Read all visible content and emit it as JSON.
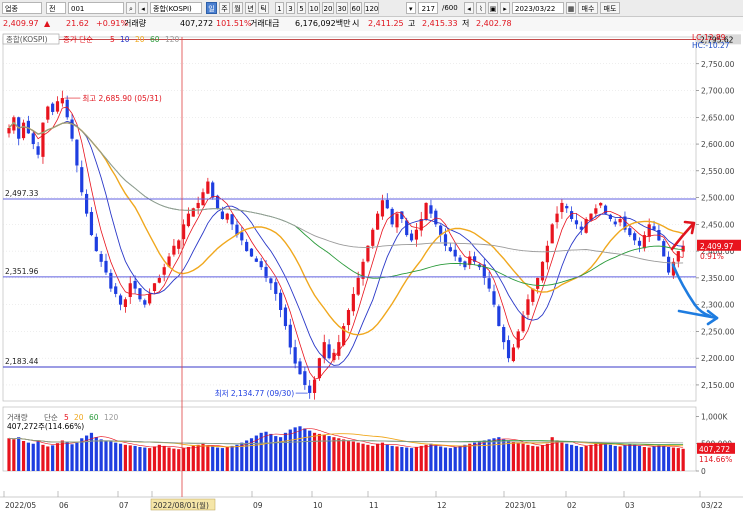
{
  "toolbar": {
    "market_select": "업종",
    "scope_select": "전",
    "code_input": "001",
    "index_name": "종합(KOSPI)",
    "period_buttons": [
      "일",
      "주",
      "월",
      "년",
      "틱"
    ],
    "minute_buttons": [
      "1",
      "3",
      "5",
      "10",
      "20",
      "30",
      "60",
      "120"
    ],
    "count_display": "217",
    "count_total": "/600",
    "date_input": "2023/03/22",
    "buy_button": "매수",
    "sell_button": "매도"
  },
  "quote": {
    "price": "2,409.97",
    "arrow": "▲",
    "change": "21.62",
    "change_pct": "+0.91%",
    "volume_label": "거래량",
    "volume": "407,272",
    "volume_ratio": "101.51%",
    "amount_label": "거래대금",
    "amount": "6,176,092백만",
    "open_label": "시",
    "open": "2,411.25",
    "high_label": "고",
    "high": "2,415.33",
    "low_label": "저",
    "low": "2,402.78"
  },
  "price_panel": {
    "legend_name": "종합(KOSPI)",
    "ma_label": "종가 단순",
    "ma_periods": [
      "5",
      "10",
      "20",
      "60",
      "120"
    ],
    "ma_colors": [
      "#e8141e",
      "#2a38c8",
      "#f0a81e",
      "#2a9a3a",
      "#9a9a9a"
    ],
    "corner_lc": "LC:12.89",
    "corner_hc": "HC:-10.27",
    "max_label": "최고 2,685.90 (05/31)",
    "min_label": "최저 2,134.77 (09/30)",
    "hline_labels": [
      "2,497.33",
      "2,351.96",
      "2,183.44"
    ],
    "right_top_price": "2,795.62",
    "current_price_tag": "2,409.97",
    "current_pct_tag": "0.91%",
    "y_ticks": [
      "2,750.00",
      "2,700.00",
      "2,650.00",
      "2,600.00",
      "2,550.00",
      "2,500.00",
      "2,450.00",
      "2,400.00",
      "2,350.00",
      "2,300.00",
      "2,250.00",
      "2,200.00",
      "2,150.00"
    ]
  },
  "volume_panel": {
    "legend_name": "거래량",
    "ma_label": "단순",
    "ma_periods": [
      "5",
      "20",
      "60",
      "120"
    ],
    "value_label": "407,272주(114.66%)",
    "y_ticks": [
      "1,000K",
      "500,000",
      "0"
    ],
    "tag_value": "407,272",
    "tag_pct": "114.66%"
  },
  "x_axis": {
    "labels": [
      "2022/05",
      "06",
      "07",
      "2022/08/01(월)",
      "09",
      "10",
      "11",
      "12",
      "2023/01",
      "02",
      "03",
      "03/22"
    ]
  },
  "annotations": {
    "up_arrow_color": "#e0141e",
    "down_arrow_color": "#1e7ce0"
  },
  "chart_data": {
    "type": "candlestick",
    "ylim": [
      2120,
      2800
    ],
    "hlines": [
      2497.33,
      2351.96,
      2183.44
    ],
    "high_point": {
      "value": 2685.9,
      "date": "05/31"
    },
    "low_point": {
      "value": 2134.77,
      "date": "09/30"
    },
    "close_series": [
      2630,
      2650,
      2610,
      2640,
      2620,
      2600,
      2580,
      2640,
      2670,
      2660,
      2680,
      2686,
      2650,
      2610,
      2560,
      2510,
      2470,
      2430,
      2400,
      2380,
      2360,
      2330,
      2320,
      2300,
      2310,
      2340,
      2330,
      2310,
      2300,
      2320,
      2340,
      2350,
      2370,
      2390,
      2410,
      2420,
      2450,
      2470,
      2480,
      2490,
      2510,
      2530,
      2500,
      2480,
      2460,
      2470,
      2450,
      2430,
      2420,
      2400,
      2390,
      2380,
      2370,
      2350,
      2340,
      2320,
      2290,
      2260,
      2220,
      2190,
      2170,
      2150,
      2135,
      2160,
      2200,
      2230,
      2200,
      2210,
      2230,
      2260,
      2290,
      2320,
      2350,
      2380,
      2410,
      2440,
      2470,
      2495,
      2480,
      2450,
      2470,
      2460,
      2430,
      2420,
      2440,
      2460,
      2490,
      2470,
      2450,
      2430,
      2410,
      2400,
      2390,
      2380,
      2370,
      2390,
      2380,
      2370,
      2350,
      2330,
      2300,
      2260,
      2230,
      2200,
      2220,
      2250,
      2280,
      2310,
      2330,
      2350,
      2380,
      2410,
      2450,
      2470,
      2490,
      2480,
      2460,
      2450,
      2440,
      2460,
      2470,
      2480,
      2490,
      2470,
      2460,
      2450,
      2460,
      2440,
      2430,
      2420,
      2410,
      2430,
      2450,
      2440,
      2420,
      2390,
      2360,
      2380,
      2400,
      2410
    ],
    "volume_series": [
      600,
      580,
      620,
      550,
      520,
      500,
      540,
      480,
      450,
      470,
      510,
      560,
      530,
      490,
      520,
      600,
      650,
      700,
      620,
      580,
      560,
      540,
      520,
      500,
      480,
      470,
      460,
      440,
      430,
      420,
      450,
      480,
      460,
      430,
      410,
      400,
      420,
      440,
      460,
      480,
      500,
      470,
      450,
      430,
      420,
      440,
      460,
      480,
      520,
      560,
      600,
      650,
      700,
      720,
      680,
      640,
      620,
      700,
      760,
      800,
      820,
      780,
      740,
      700,
      680,
      660,
      640,
      620,
      600,
      580,
      560,
      540,
      520,
      500,
      480,
      460,
      500,
      520,
      480,
      460,
      450,
      440,
      430,
      420,
      440,
      460,
      480,
      500,
      470,
      450,
      430,
      420,
      440,
      460,
      480,
      500,
      520,
      540,
      560,
      580,
      600,
      620,
      580,
      560,
      540,
      520,
      500,
      480,
      460,
      450,
      470,
      500,
      620,
      560,
      520,
      500,
      480,
      460,
      440,
      460,
      480,
      500,
      520,
      500,
      480,
      460,
      450,
      470,
      490,
      480,
      460,
      440,
      430,
      450,
      470,
      460,
      440,
      430,
      420,
      407
    ]
  }
}
